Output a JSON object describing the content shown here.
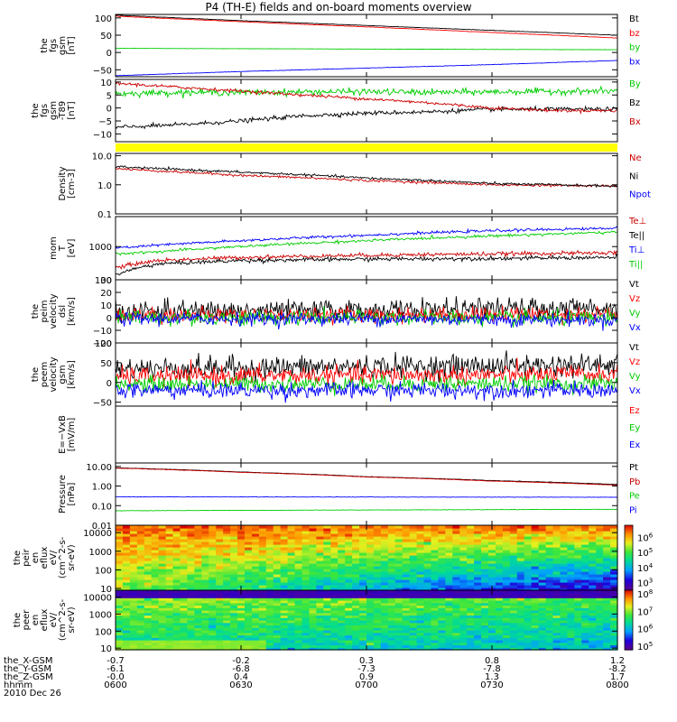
{
  "title": "P4 (TH-E) fields and on-board moments overview",
  "date_label": "2010 Dec 26",
  "ephemeris": {
    "rows": [
      {
        "label": "the_X-GSM",
        "values": [
          "-0.7",
          "-0.2",
          "0.3",
          "0.8",
          "1.2"
        ]
      },
      {
        "label": "the_Y-GSM",
        "values": [
          "-6.1",
          "-6.8",
          "-7.3",
          "-7.8",
          "-8.2"
        ]
      },
      {
        "label": "the_Z-GSM",
        "values": [
          "-0.0",
          "0.4",
          "0.9",
          "1.3",
          "1.7"
        ]
      },
      {
        "label": "hhmm",
        "values": [
          "0600",
          "0630",
          "0700",
          "0730",
          "0800"
        ]
      }
    ]
  },
  "chart_data": [
    {
      "type": "line",
      "ylabel_lines": [
        "the",
        "fgs",
        "gsm",
        "[nT]"
      ],
      "yticks": [
        "100",
        "50",
        "0",
        "−50"
      ],
      "ylim": [
        -70,
        110
      ],
      "xlim": [
        0,
        120
      ],
      "series": [
        {
          "name": "Bt",
          "color": "#000000",
          "x": [
            0,
            30,
            60,
            90,
            120
          ],
          "y": [
            108,
            92,
            78,
            64,
            50
          ],
          "noise": 0.3
        },
        {
          "name": "bz",
          "color": "#ff0000",
          "x": [
            0,
            30,
            60,
            90,
            120
          ],
          "y": [
            105,
            89,
            74,
            58,
            42
          ],
          "noise": 0.3
        },
        {
          "name": "by",
          "color": "#00cc00",
          "x": [
            0,
            30,
            60,
            90,
            120
          ],
          "y": [
            12,
            11,
            10,
            9,
            8
          ],
          "noise": 0.2
        },
        {
          "name": "bx",
          "color": "#0000ff",
          "x": [
            0,
            30,
            60,
            90,
            120
          ],
          "y": [
            -67,
            -55,
            -45,
            -35,
            -23
          ],
          "noise": 0.3
        }
      ]
    },
    {
      "type": "line",
      "ylabel_lines": [
        "the",
        "fgs",
        "gsm",
        "-T89",
        "[nT]"
      ],
      "yticks": [
        "10",
        "5",
        "0",
        "−5",
        "−10"
      ],
      "ylim": [
        -13,
        11
      ],
      "xlim": [
        0,
        120
      ],
      "series": [
        {
          "name": "By",
          "color": "#00cc00",
          "x": [
            0,
            15,
            30,
            45,
            60,
            75,
            90,
            105,
            120
          ],
          "y": [
            5.5,
            6,
            6,
            6.2,
            6.3,
            6,
            6.2,
            6.4,
            6.5
          ],
          "noise": 0.6
        },
        {
          "name": "Bz",
          "color": "#000000",
          "x": [
            0,
            15,
            30,
            45,
            60,
            75,
            90,
            105,
            120
          ],
          "y": [
            -7.5,
            -6.5,
            -5,
            -3,
            -2,
            -1.5,
            -0.5,
            -0.5,
            -0.5
          ],
          "noise": 0.4
        },
        {
          "name": "Bx",
          "color": "#cc0000",
          "x": [
            0,
            15,
            30,
            45,
            60,
            75,
            90,
            105,
            120
          ],
          "y": [
            9.5,
            8,
            6.5,
            5,
            3.5,
            2,
            0,
            -1,
            -1
          ],
          "noise": 0.3
        }
      ]
    },
    {
      "type": "line",
      "yscale": "log",
      "ylabel_lines": [
        "Density",
        "[cm-3]"
      ],
      "yticks": [
        "10.0",
        "1.0",
        "0.1"
      ],
      "ylim": [
        0.1,
        12
      ],
      "xlim": [
        0,
        120
      ],
      "series": [
        {
          "name": "Ne",
          "color": "#cc0000",
          "x": [
            0,
            10,
            30,
            60,
            90,
            120
          ],
          "y": [
            3.6,
            3.0,
            2.1,
            1.4,
            1.0,
            0.9
          ],
          "noise": 0.02
        },
        {
          "name": "Ni",
          "color": "#000000",
          "x": [
            0,
            10,
            30,
            60,
            90,
            120
          ],
          "y": [
            4.2,
            3.6,
            2.7,
            1.7,
            1.1,
            0.9
          ],
          "noise": 0.02
        },
        {
          "name": "Npot",
          "color": "#0000ff",
          "x": [],
          "y": []
        }
      ]
    },
    {
      "type": "line",
      "yscale": "log",
      "ylabel_lines": [
        "mom",
        "T",
        "[eV]"
      ],
      "yticks": [
        "1000",
        "100"
      ],
      "ylim": [
        100,
        8000
      ],
      "xlim": [
        0,
        120
      ],
      "series": [
        {
          "name": "Te⊥",
          "color": "#cc0000",
          "x": [
            0,
            10,
            30,
            60,
            90,
            120
          ],
          "y": [
            230,
            380,
            470,
            550,
            600,
            650
          ],
          "noise": 0.03
        },
        {
          "name": "Te||",
          "color": "#000000",
          "x": [
            0,
            10,
            30,
            60,
            90,
            120
          ],
          "y": [
            140,
            300,
            380,
            420,
            440,
            470
          ],
          "noise": 0.03
        },
        {
          "name": "Ti⊥",
          "color": "#0000ff",
          "x": [
            0,
            10,
            30,
            60,
            90,
            120
          ],
          "y": [
            900,
            1100,
            1500,
            2200,
            3000,
            3600
          ],
          "noise": 0.02
        },
        {
          "name": "Ti||",
          "color": "#00cc00",
          "x": [
            0,
            10,
            30,
            60,
            90,
            120
          ],
          "y": [
            600,
            700,
            1000,
            1500,
            2100,
            2700
          ],
          "noise": 0.02
        }
      ]
    },
    {
      "type": "line",
      "ylabel_lines": [
        "the",
        "peim",
        "velocity",
        "dsl",
        "[km/s]"
      ],
      "yticks": [
        "30",
        "20",
        "10",
        "0",
        "−10",
        "−20"
      ],
      "ylim": [
        -20,
        30
      ],
      "xlim": [
        0,
        120
      ],
      "series": [
        {
          "name": "Vt",
          "color": "#000000",
          "x": [
            0,
            60,
            120
          ],
          "y": [
            5,
            6,
            8
          ],
          "noise": 4
        },
        {
          "name": "Vz",
          "color": "#ff0000",
          "x": [
            0,
            60,
            120
          ],
          "y": [
            2,
            2,
            3
          ],
          "noise": 3
        },
        {
          "name": "Vy",
          "color": "#00cc00",
          "x": [
            0,
            60,
            120
          ],
          "y": [
            0,
            0,
            -1
          ],
          "noise": 3
        },
        {
          "name": "Vx",
          "color": "#0000ff",
          "x": [
            0,
            60,
            120
          ],
          "y": [
            -1,
            -1,
            -2
          ],
          "noise": 2.5
        }
      ]
    },
    {
      "type": "line",
      "ylabel_lines": [
        "the",
        "peem",
        "velocity",
        "gsm",
        "[km/s]"
      ],
      "yticks": [
        "100",
        "50",
        "0",
        "−50"
      ],
      "ylim": [
        -60,
        100
      ],
      "xlim": [
        0,
        120
      ],
      "series": [
        {
          "name": "Vt",
          "color": "#000000",
          "x": [
            0,
            60,
            120
          ],
          "y": [
            35,
            40,
            45
          ],
          "noise": 14
        },
        {
          "name": "Vz",
          "color": "#ff0000",
          "x": [
            0,
            60,
            120
          ],
          "y": [
            15,
            18,
            20
          ],
          "noise": 12
        },
        {
          "name": "Vy",
          "color": "#00cc00",
          "x": [
            0,
            60,
            120
          ],
          "y": [
            -5,
            -4,
            -3
          ],
          "noise": 10
        },
        {
          "name": "Vx",
          "color": "#0000ff",
          "x": [
            0,
            60,
            120
          ],
          "y": [
            -20,
            -20,
            -20
          ],
          "noise": 10
        }
      ]
    },
    {
      "type": "line",
      "ylabel_lines": [
        "E=−VxB",
        "[mV/m]"
      ],
      "yticks": [],
      "ylim": [
        -1,
        1
      ],
      "xlim": [
        0,
        120
      ],
      "series": [
        {
          "name": "Ez",
          "color": "#ff0000",
          "x": [],
          "y": []
        },
        {
          "name": "Ey",
          "color": "#00cc00",
          "x": [],
          "y": []
        },
        {
          "name": "Ex",
          "color": "#0000ff",
          "x": [],
          "y": []
        }
      ]
    },
    {
      "type": "line",
      "yscale": "log",
      "ylabel_lines": [
        "Pressure",
        "[nPa]"
      ],
      "yticks": [
        "10.00",
        "1.00",
        "0.10",
        "0.01"
      ],
      "ylim": [
        0.01,
        15
      ],
      "xlim": [
        0,
        120
      ],
      "series": [
        {
          "name": "Pt",
          "color": "#000000",
          "x": [
            0,
            30,
            60,
            90,
            120
          ],
          "y": [
            8.5,
            5.2,
            3.0,
            1.9,
            1.2
          ],
          "noise": 0.005
        },
        {
          "name": "Pb",
          "color": "#cc0000",
          "x": [
            0,
            30,
            60,
            90,
            120
          ],
          "y": [
            8.2,
            5.0,
            2.9,
            1.8,
            1.1
          ],
          "noise": 0.005
        },
        {
          "name": "Pe",
          "color": "#00cc00",
          "x": [
            0,
            120
          ],
          "y": [
            0.055,
            0.065
          ],
          "noise": 0.005
        },
        {
          "name": "Pi",
          "color": "#0000ff",
          "x": [
            0,
            120
          ],
          "y": [
            0.28,
            0.27
          ],
          "noise": 0.005
        }
      ]
    },
    {
      "type": "heatmap",
      "yscale": "log",
      "ylabel_lines": [
        "the",
        "peir",
        "en",
        "eflux",
        "eV/",
        "(cm^2-s-",
        "sr-eV)"
      ],
      "yticks": [
        "10000",
        "1000",
        "100",
        "10"
      ],
      "ylim": [
        8,
        25000
      ],
      "xlim": [
        0,
        120
      ],
      "colorbar_ticks": [
        "10^6",
        "10^5",
        "10^4",
        "10^3"
      ],
      "zlog": [
        2.5,
        6.8
      ]
    },
    {
      "type": "heatmap",
      "yscale": "log",
      "ylabel_lines": [
        "the",
        "peer",
        "en",
        "eflux",
        "eV/",
        "(cm^2-s-",
        "sr-eV)"
      ],
      "yticks": [
        "10000",
        "1000",
        "100",
        "10"
      ],
      "ylim": [
        8,
        25000
      ],
      "xlim": [
        0,
        120
      ],
      "colorbar_ticks": [
        "10^8",
        "10^7",
        "10^6",
        "10^5"
      ],
      "zlog": [
        4.8,
        8.2
      ]
    }
  ]
}
